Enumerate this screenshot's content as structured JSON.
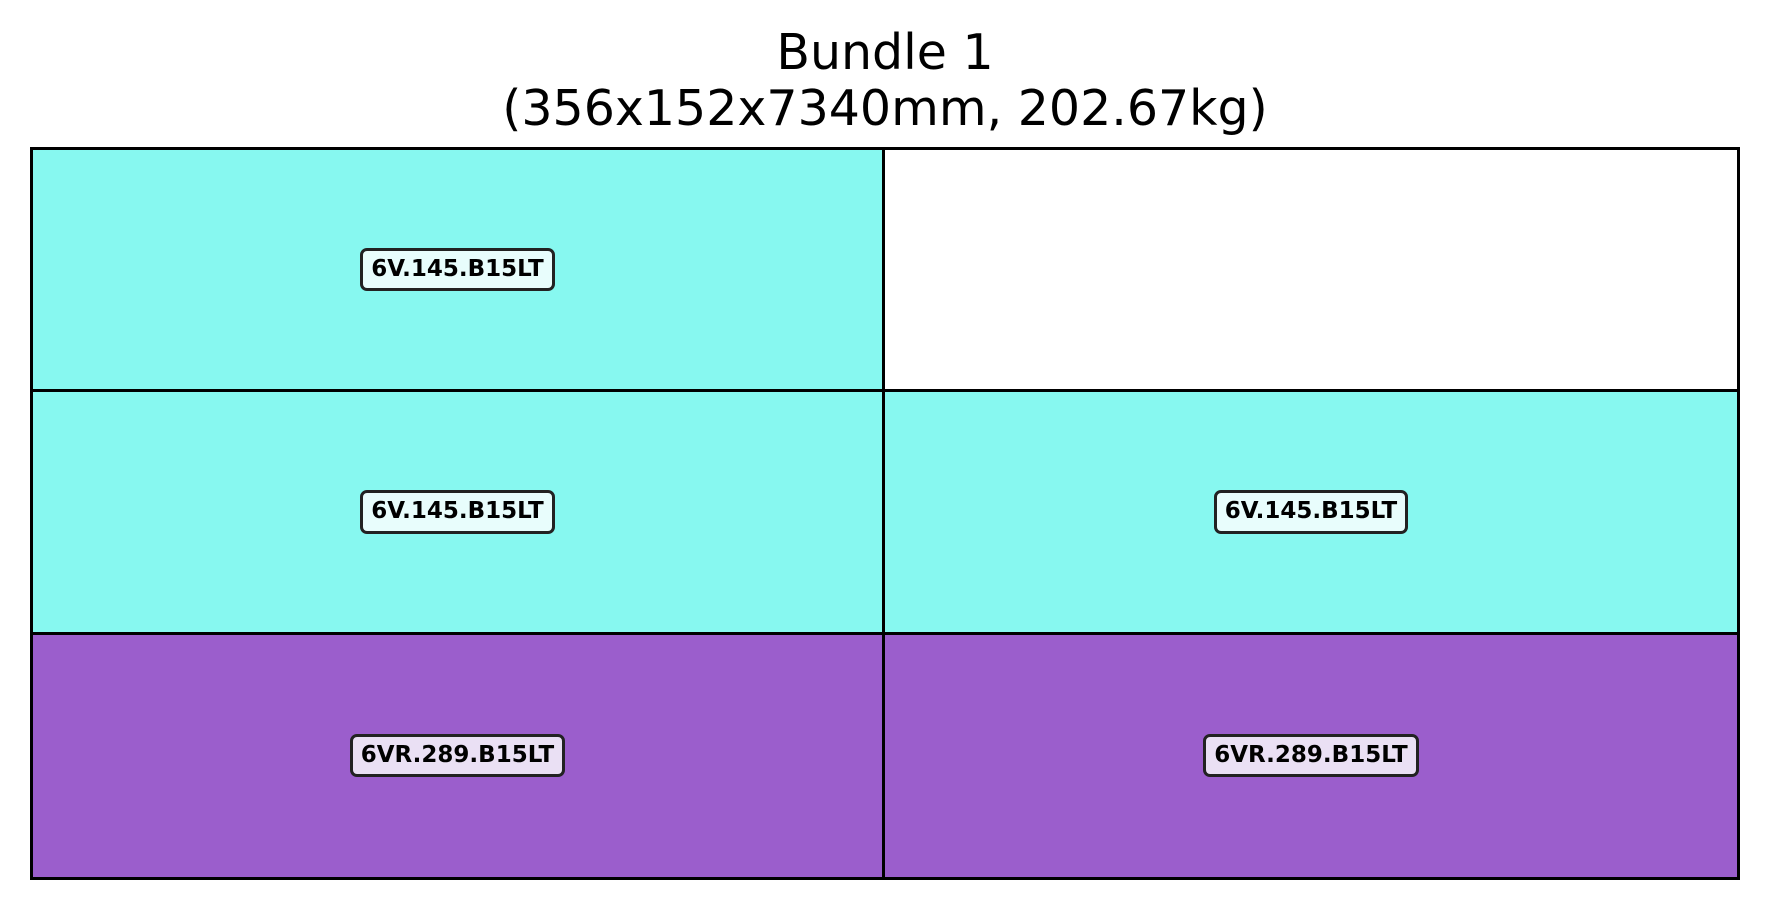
{
  "title": {
    "line1": "Bundle 1",
    "line2": "(356x152x7340mm, 202.67kg)"
  },
  "colors": {
    "cyan_fill": "#87F8F0",
    "purple_fill": "#9B5ECC",
    "empty_fill": "#FFFFFF",
    "cyan_label_bg": "#E8FDFC",
    "purple_label_bg": "#EAE0F4",
    "border": "#000000"
  },
  "cells": [
    {
      "row": 0,
      "col": 0,
      "label": "6V.145.B15LT",
      "fill": "#87F8F0",
      "label_bg": "#E8FDFC"
    },
    {
      "row": 0,
      "col": 1,
      "label": "",
      "fill": "#FFFFFF",
      "label_bg": ""
    },
    {
      "row": 1,
      "col": 0,
      "label": "6V.145.B15LT",
      "fill": "#87F8F0",
      "label_bg": "#E8FDFC"
    },
    {
      "row": 1,
      "col": 1,
      "label": "6V.145.B15LT",
      "fill": "#87F8F0",
      "label_bg": "#E8FDFC"
    },
    {
      "row": 2,
      "col": 0,
      "label": "6VR.289.B15LT",
      "fill": "#9B5ECC",
      "label_bg": "#EAE0F4"
    },
    {
      "row": 2,
      "col": 1,
      "label": "6VR.289.B15LT",
      "fill": "#9B5ECC",
      "label_bg": "#EAE0F4"
    }
  ]
}
